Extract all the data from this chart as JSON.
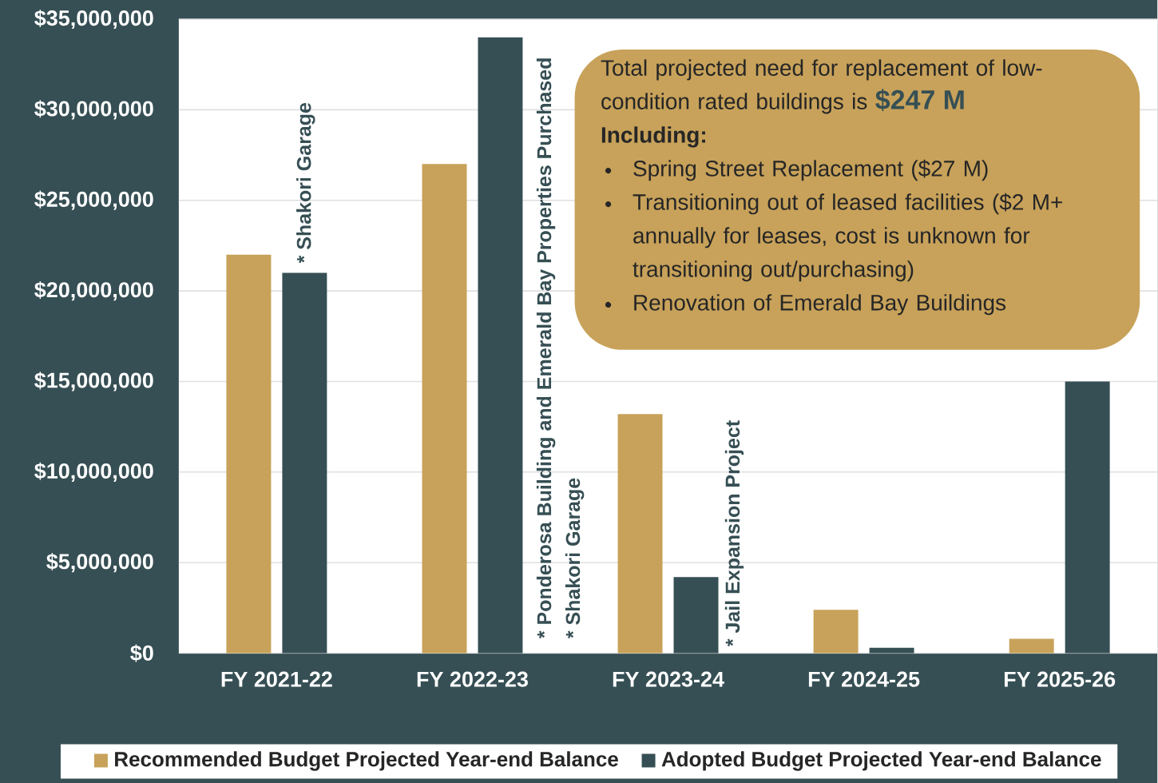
{
  "chart_data": {
    "type": "bar",
    "categories": [
      "FY 2021-22",
      "FY 2022-23",
      "FY 2023-24",
      "FY 2024-25",
      "FY 2025-26"
    ],
    "series": [
      {
        "name": "Recommended Budget Projected Year-end Balance",
        "color": "#c8a25a",
        "values": [
          22000000,
          27000000,
          13200000,
          2400000,
          800000
        ]
      },
      {
        "name": "Adopted Budget Projected Year-end Balance",
        "color": "#364f54",
        "values": [
          21000000,
          34000000,
          4200000,
          300000,
          15000000
        ]
      }
    ],
    "ylim": [
      0,
      35000000
    ],
    "yticks": [
      {
        "value": 0,
        "label": "$0"
      },
      {
        "value": 5000000,
        "label": "$5,000,000"
      },
      {
        "value": 10000000,
        "label": "$10,000,000"
      },
      {
        "value": 15000000,
        "label": "$15,000,000"
      },
      {
        "value": 20000000,
        "label": "$20,000,000"
      },
      {
        "value": 25000000,
        "label": "$25,000,000"
      },
      {
        "value": 30000000,
        "label": "$30,000,000"
      },
      {
        "value": 35000000,
        "label": "$35,000,000"
      }
    ],
    "grid": "y",
    "legend": "bottom",
    "annotations": [
      "* Shakori Garage",
      "* Ponderosa Building and Emerald Bay Properties Purchased",
      "* Shakori Garage",
      "* Jail Expansion Project",
      "Total projected need for replacement of low-condition rated buildings is",
      "$247 M",
      "Including:",
      "Spring Street Replacement ($27 M)",
      "Transitioning out of leased facilities ($2 M+ annually for leases, cost is unknown for transitioning out/purchasing)",
      "Renovation of Emerald Bay Buildings"
    ]
  }
}
